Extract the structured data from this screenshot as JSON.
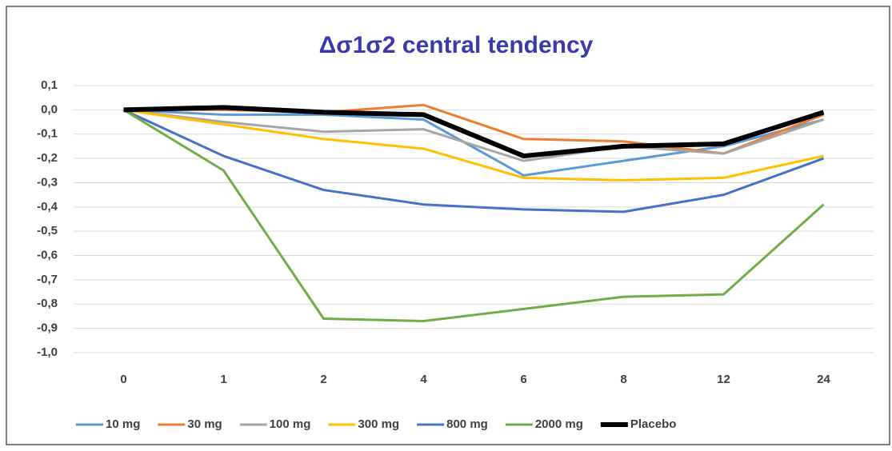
{
  "chart_data": {
    "type": "line",
    "title": "Δσ1σ2 central tendency",
    "categories": [
      "0",
      "1",
      "2",
      "4",
      "6",
      "8",
      "12",
      "24"
    ],
    "series": [
      {
        "name": "10 mg",
        "color": "#5b9bd5",
        "width": 3,
        "values": [
          0,
          -0.02,
          -0.02,
          -0.04,
          -0.27,
          -0.21,
          -0.15,
          -0.04
        ]
      },
      {
        "name": "30 mg",
        "color": "#ed7d31",
        "width": 3,
        "values": [
          0,
          0.0,
          -0.01,
          0.02,
          -0.12,
          -0.13,
          -0.18,
          -0.02
        ]
      },
      {
        "name": "100 mg",
        "color": "#a5a5a5",
        "width": 3,
        "values": [
          0,
          -0.05,
          -0.09,
          -0.08,
          -0.21,
          -0.15,
          -0.18,
          -0.04
        ]
      },
      {
        "name": "300 mg",
        "color": "#ffc000",
        "width": 3,
        "values": [
          0,
          -0.06,
          -0.12,
          -0.16,
          -0.28,
          -0.29,
          -0.28,
          -0.19
        ]
      },
      {
        "name": "800 mg",
        "color": "#4472c4",
        "width": 3,
        "values": [
          0,
          -0.19,
          -0.33,
          -0.39,
          -0.41,
          -0.42,
          -0.35,
          -0.2
        ]
      },
      {
        "name": "2000 mg",
        "color": "#70ad47",
        "width": 3,
        "values": [
          0,
          -0.25,
          -0.86,
          -0.87,
          -0.82,
          -0.77,
          -0.76,
          -0.39
        ]
      },
      {
        "name": "Placebo",
        "color": "#000000",
        "width": 6,
        "values": [
          0,
          0.01,
          -0.01,
          -0.02,
          -0.19,
          -0.15,
          -0.14,
          -0.01
        ]
      }
    ],
    "ylim": [
      -1.0,
      0.1
    ],
    "yticks": [
      {
        "value": 0.1,
        "label": "0,1"
      },
      {
        "value": 0.0,
        "label": "0,0"
      },
      {
        "value": -0.1,
        "label": "-0,1"
      },
      {
        "value": -0.2,
        "label": "-0,2"
      },
      {
        "value": -0.3,
        "label": "-0,3"
      },
      {
        "value": -0.4,
        "label": "-0,4"
      },
      {
        "value": -0.5,
        "label": "-0,5"
      },
      {
        "value": -0.6,
        "label": "-0,6"
      },
      {
        "value": -0.7,
        "label": "-0,7"
      },
      {
        "value": -0.8,
        "label": "-0,8"
      },
      {
        "value": -0.9,
        "label": "-0,9"
      },
      {
        "value": -1.0,
        "label": "-1,0"
      }
    ],
    "grid": true,
    "legend": "bottom"
  }
}
